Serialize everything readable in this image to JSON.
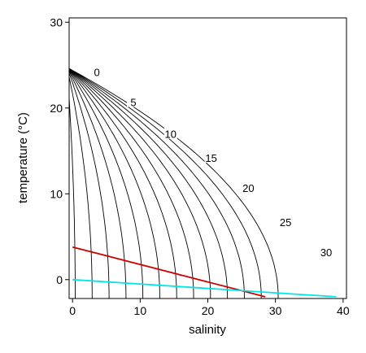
{
  "chart_data": {
    "type": "line",
    "xlabel": "salinity",
    "ylabel": "temperature (°C)",
    "xlim": [
      -0.5,
      40.5
    ],
    "ylim": [
      -2.2,
      30.5
    ],
    "x_ticks": [
      0,
      10,
      20,
      30,
      40
    ],
    "y_ticks": [
      0,
      10,
      20,
      30
    ],
    "grid": false,
    "contours": {
      "description_of_quantity": "isolines",
      "levels": [
        0,
        2.5,
        5,
        7.5,
        10,
        12.5,
        15,
        17.5,
        20,
        22.5,
        25,
        27.5,
        30
      ],
      "labeled_levels": [
        {
          "text": "0",
          "x": 3.6,
          "y": 24
        },
        {
          "text": "5",
          "x": 9.0,
          "y": 20.5
        },
        {
          "text": "10",
          "x": 14.5,
          "y": 16.8
        },
        {
          "text": "15",
          "x": 20.5,
          "y": 14.0
        },
        {
          "text": "20",
          "x": 26.0,
          "y": 10.5
        },
        {
          "text": "25",
          "x": 31.5,
          "y": 6.5
        },
        {
          "text": "30",
          "x": 37.5,
          "y": 3.0
        }
      ],
      "color": "#000000"
    },
    "series": [
      {
        "color": "#cc0000",
        "x": [
          0,
          28.5
        ],
        "y": [
          3.8,
          -2.0
        ]
      },
      {
        "color": "#00e5e5",
        "x": [
          0,
          39
        ],
        "y": [
          0,
          -2.0
        ]
      }
    ]
  }
}
